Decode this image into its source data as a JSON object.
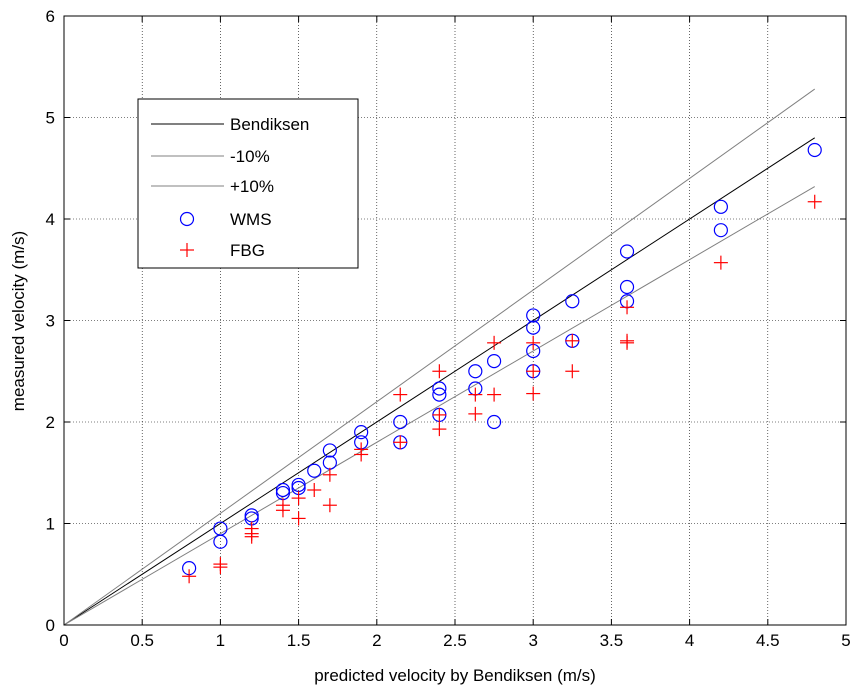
{
  "chart_data": {
    "type": "scatter",
    "title": "",
    "xlabel": "predicted velocity by Bendiksen (m/s)",
    "ylabel": "measured velocity (m/s)",
    "xlim": [
      0,
      5
    ],
    "ylim": [
      0,
      6
    ],
    "x_ticks": [
      "0",
      "0.5",
      "1",
      "1.5",
      "2",
      "2.5",
      "3",
      "3.5",
      "4",
      "4.5",
      "5"
    ],
    "y_ticks": [
      "0",
      "1",
      "2",
      "3",
      "4",
      "5",
      "6"
    ],
    "grid": true,
    "legend_position": "upper-left",
    "series": [
      {
        "name": "Bendiksen",
        "kind": "line",
        "color": "#000000",
        "points": [
          [
            0,
            0
          ],
          [
            4.8,
            4.8
          ]
        ]
      },
      {
        "name": "-10%",
        "kind": "line",
        "color": "#808080",
        "points": [
          [
            0,
            0
          ],
          [
            4.8,
            4.32
          ]
        ]
      },
      {
        "name": "+10%",
        "kind": "line",
        "color": "#808080",
        "points": [
          [
            0,
            0
          ],
          [
            4.8,
            5.28
          ]
        ]
      },
      {
        "name": "WMS",
        "kind": "marker",
        "marker": "circle",
        "color": "#0000ff",
        "points": [
          [
            0.8,
            0.56
          ],
          [
            1.0,
            0.95
          ],
          [
            1.0,
            0.82
          ],
          [
            1.2,
            1.08
          ],
          [
            1.2,
            1.05
          ],
          [
            1.4,
            1.33
          ],
          [
            1.4,
            1.3
          ],
          [
            1.5,
            1.38
          ],
          [
            1.5,
            1.35
          ],
          [
            1.6,
            1.52
          ],
          [
            1.7,
            1.72
          ],
          [
            1.7,
            1.6
          ],
          [
            1.9,
            1.9
          ],
          [
            1.9,
            1.8
          ],
          [
            2.15,
            2.0
          ],
          [
            2.15,
            1.8
          ],
          [
            2.4,
            2.33
          ],
          [
            2.4,
            2.27
          ],
          [
            2.4,
            2.07
          ],
          [
            2.63,
            2.5
          ],
          [
            2.63,
            2.33
          ],
          [
            2.75,
            2.6
          ],
          [
            2.75,
            2.0
          ],
          [
            3.0,
            3.05
          ],
          [
            3.0,
            2.93
          ],
          [
            3.0,
            2.7
          ],
          [
            3.0,
            2.5
          ],
          [
            3.25,
            3.19
          ],
          [
            3.25,
            2.8
          ],
          [
            3.6,
            3.68
          ],
          [
            3.6,
            3.33
          ],
          [
            3.6,
            3.19
          ],
          [
            4.2,
            4.12
          ],
          [
            4.2,
            3.89
          ],
          [
            4.8,
            4.68
          ]
        ]
      },
      {
        "name": "FBG",
        "kind": "marker",
        "marker": "plus",
        "color": "#ff0000",
        "points": [
          [
            0.8,
            0.48
          ],
          [
            1.0,
            0.6
          ],
          [
            1.0,
            0.57
          ],
          [
            1.2,
            0.95
          ],
          [
            1.2,
            0.9
          ],
          [
            1.2,
            0.87
          ],
          [
            1.4,
            1.18
          ],
          [
            1.4,
            1.13
          ],
          [
            1.5,
            1.25
          ],
          [
            1.5,
            1.05
          ],
          [
            1.6,
            1.33
          ],
          [
            1.7,
            1.48
          ],
          [
            1.7,
            1.18
          ],
          [
            1.9,
            1.73
          ],
          [
            1.9,
            1.68
          ],
          [
            2.15,
            2.27
          ],
          [
            2.15,
            1.8
          ],
          [
            2.4,
            2.5
          ],
          [
            2.4,
            2.07
          ],
          [
            2.4,
            1.93
          ],
          [
            2.63,
            2.27
          ],
          [
            2.63,
            2.08
          ],
          [
            2.75,
            2.78
          ],
          [
            2.75,
            2.27
          ],
          [
            3.0,
            2.78
          ],
          [
            3.0,
            2.5
          ],
          [
            3.0,
            2.28
          ],
          [
            3.25,
            2.8
          ],
          [
            3.25,
            2.5
          ],
          [
            3.6,
            3.13
          ],
          [
            3.6,
            2.8
          ],
          [
            3.6,
            2.78
          ],
          [
            4.2,
            3.57
          ],
          [
            4.8,
            4.17
          ]
        ]
      }
    ],
    "legend": [
      "Bendiksen",
      "-10%",
      "+10%",
      "WMS",
      "FBG"
    ]
  }
}
